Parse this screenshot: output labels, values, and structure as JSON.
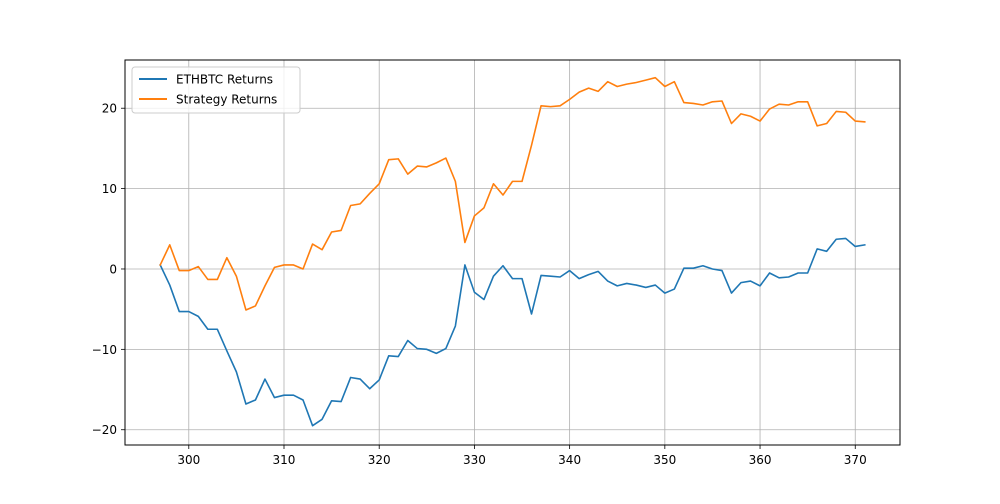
{
  "chart_data": {
    "type": "line",
    "title": "",
    "xlabel": "",
    "ylabel": "",
    "xlim": [
      293.3,
      374.7
    ],
    "ylim": [
      -21.9,
      26.0
    ],
    "xticks": [
      300,
      310,
      320,
      330,
      340,
      350,
      360,
      370
    ],
    "yticks": [
      -20,
      -10,
      0,
      10,
      20
    ],
    "grid": true,
    "legend_position": "upper left",
    "x": [
      297,
      298,
      299,
      300,
      301,
      302,
      303,
      304,
      305,
      306,
      307,
      308,
      309,
      310,
      311,
      312,
      313,
      314,
      315,
      316,
      317,
      318,
      319,
      320,
      321,
      322,
      323,
      324,
      325,
      326,
      327,
      328,
      329,
      330,
      331,
      332,
      333,
      334,
      335,
      336,
      337,
      338,
      339,
      340,
      341,
      342,
      343,
      344,
      345,
      346,
      347,
      348,
      349,
      350,
      351,
      352,
      353,
      354,
      355,
      356,
      357,
      358,
      359,
      360,
      361,
      362,
      363,
      364,
      365,
      366,
      367,
      368,
      369,
      370,
      371
    ],
    "series": [
      {
        "name": "ETHBTC Returns",
        "color": "#1f77b4",
        "values": [
          0.5,
          -2.0,
          -5.3,
          -5.3,
          -5.9,
          -7.5,
          -7.5,
          -10.2,
          -12.8,
          -16.8,
          -16.3,
          -13.7,
          -16.0,
          -15.7,
          -15.7,
          -16.3,
          -19.5,
          -18.7,
          -16.4,
          -16.5,
          -13.5,
          -13.7,
          -14.9,
          -13.8,
          -10.8,
          -10.9,
          -8.9,
          -9.9,
          -10.0,
          -10.5,
          -9.9,
          -7.1,
          0.5,
          -2.9,
          -3.8,
          -0.9,
          0.4,
          -1.2,
          -1.2,
          -5.6,
          -0.8,
          -0.9,
          -1.0,
          -0.2,
          -1.2,
          -0.7,
          -0.3,
          -1.5,
          -2.1,
          -1.8,
          -2.0,
          -2.3,
          -2.0,
          -3.0,
          -2.5,
          0.1,
          0.1,
          0.4,
          0.0,
          -0.2,
          -3.0,
          -1.7,
          -1.5,
          -2.1,
          -0.5,
          -1.1,
          -1.0,
          -0.5,
          -0.5,
          2.5,
          2.2,
          3.7,
          3.8,
          2.8,
          3.0
        ]
      },
      {
        "name": "Strategy Returns",
        "color": "#ff7f0e",
        "values": [
          0.5,
          3.0,
          -0.2,
          -0.2,
          0.3,
          -1.3,
          -1.3,
          1.4,
          -0.9,
          -5.1,
          -4.6,
          -2.1,
          0.2,
          0.5,
          0.5,
          0.0,
          3.1,
          2.4,
          4.6,
          4.8,
          7.9,
          8.1,
          9.4,
          10.6,
          13.6,
          13.7,
          11.8,
          12.8,
          12.7,
          13.2,
          13.8,
          10.9,
          3.3,
          6.6,
          7.6,
          10.6,
          9.2,
          10.9,
          10.9,
          15.4,
          20.3,
          20.2,
          20.3,
          21.1,
          22.0,
          22.5,
          22.1,
          23.3,
          22.7,
          23.0,
          23.2,
          23.5,
          23.8,
          22.7,
          23.3,
          20.7,
          20.6,
          20.4,
          20.8,
          20.9,
          18.1,
          19.3,
          19.0,
          18.4,
          19.9,
          20.5,
          20.4,
          20.8,
          20.8,
          17.8,
          18.1,
          19.6,
          19.5,
          18.4,
          18.3
        ]
      }
    ]
  }
}
